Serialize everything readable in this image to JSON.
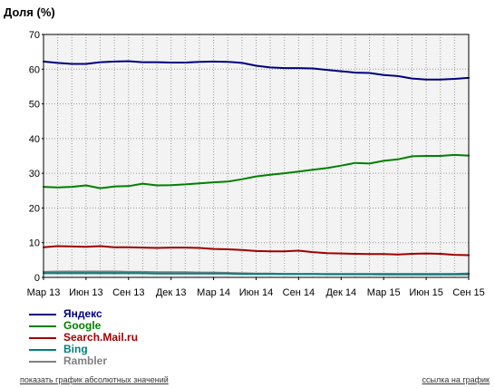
{
  "chart_data": {
    "type": "line",
    "ylabel": "Доля (%)",
    "ylim": [
      0,
      70
    ],
    "yticks": [
      0,
      10,
      20,
      30,
      40,
      50,
      60,
      70
    ],
    "x": [
      "Мар 13",
      "Апр 13",
      "Май 13",
      "Июн 13",
      "Июл 13",
      "Авг 13",
      "Сен 13",
      "Окт 13",
      "Ноя 13",
      "Дек 13",
      "Янв 14",
      "Фев 14",
      "Мар 14",
      "Апр 14",
      "Май 14",
      "Июн 14",
      "Июл 14",
      "Авг 14",
      "Сен 14",
      "Окт 14",
      "Ноя 14",
      "Дек 14",
      "Янв 15",
      "Фев 15",
      "Мар 15",
      "Апр 15",
      "Май 15",
      "Июн 15",
      "Июл 15",
      "Авг 15",
      "Сен 15"
    ],
    "xtick_labels": [
      "Мар 13",
      "Июн 13",
      "Сен 13",
      "Дек 13",
      "Мар 14",
      "Июн 14",
      "Сен 14",
      "Дек 14",
      "Мар 15",
      "Июн 15",
      "Сен 15"
    ],
    "grid": true,
    "legend_position": "bottom-left",
    "series": [
      {
        "name": "Яндекс",
        "color": "#000080",
        "values": [
          62.2,
          61.8,
          61.5,
          61.5,
          62.0,
          62.2,
          62.3,
          62.0,
          62.0,
          61.9,
          61.9,
          62.1,
          62.2,
          62.1,
          61.8,
          61.0,
          60.5,
          60.3,
          60.3,
          60.2,
          59.8,
          59.4,
          59.0,
          58.9,
          58.3,
          58.0,
          57.3,
          57.0,
          57.0,
          57.2,
          57.5
        ]
      },
      {
        "name": "Google",
        "color": "#008000",
        "values": [
          26.1,
          25.9,
          26.1,
          26.5,
          25.7,
          26.2,
          26.3,
          27.0,
          26.5,
          26.6,
          26.8,
          27.1,
          27.4,
          27.6,
          28.3,
          29.1,
          29.6,
          30.0,
          30.5,
          31.0,
          31.5,
          32.2,
          33.0,
          32.8,
          33.6,
          34.0,
          34.9,
          35.0,
          35.0,
          35.3,
          35.1
        ]
      },
      {
        "name": "Search.Mail.ru",
        "color": "#a00000",
        "values": [
          8.7,
          9.0,
          8.9,
          8.8,
          9.0,
          8.7,
          8.7,
          8.6,
          8.5,
          8.6,
          8.6,
          8.5,
          8.2,
          8.1,
          7.9,
          7.6,
          7.5,
          7.5,
          7.7,
          7.3,
          7.0,
          6.9,
          6.8,
          6.7,
          6.7,
          6.6,
          6.8,
          6.9,
          6.8,
          6.5,
          6.4
        ]
      },
      {
        "name": "Bing",
        "color": "#008080",
        "values": [
          1.2,
          1.2,
          1.2,
          1.2,
          1.2,
          1.2,
          1.2,
          1.2,
          1.1,
          1.1,
          1.1,
          1.1,
          1.1,
          1.1,
          1.0,
          1.0,
          1.0,
          1.0,
          1.0,
          1.0,
          1.0,
          1.0,
          1.0,
          1.0,
          1.0,
          1.0,
          1.0,
          1.0,
          1.0,
          1.0,
          1.1
        ]
      },
      {
        "name": "Rambler",
        "color": "#808080",
        "values": [
          1.6,
          1.7,
          1.7,
          1.7,
          1.7,
          1.7,
          1.6,
          1.6,
          1.5,
          1.5,
          1.5,
          1.4,
          1.4,
          1.3,
          1.2,
          1.1,
          1.1,
          1.0,
          1.0,
          1.0,
          0.9,
          0.9,
          0.9,
          0.9,
          0.8,
          0.8,
          0.8,
          0.8,
          0.8,
          0.8,
          0.8
        ]
      }
    ]
  },
  "footer": {
    "left_link": "показать график абсолютных значений",
    "right_link": "ссылка на график"
  }
}
